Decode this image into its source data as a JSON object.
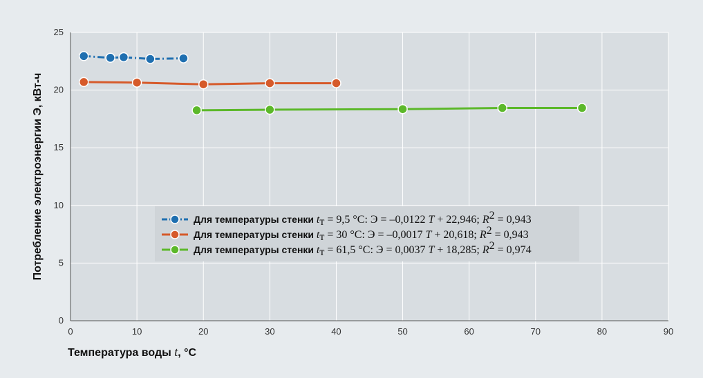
{
  "chart_data": {
    "type": "line",
    "xlabel": "Температура воды t, °C",
    "ylabel": "Потребление электроэнергии Э, кВт-ч",
    "xlim": [
      0,
      90
    ],
    "ylim": [
      0,
      25
    ],
    "xticks": [
      0,
      10,
      20,
      30,
      40,
      50,
      60,
      70,
      80,
      90
    ],
    "yticks": [
      0,
      5,
      10,
      15,
      20,
      25
    ],
    "grid": true,
    "legend_position": "center",
    "series": [
      {
        "label": "Для температуры стенки",
        "equation": "tт = 9,5°С: Э = –0,0122 T + 22,946; R2 = 0,943",
        "color": "#1f6fb0",
        "line_style": "dash-dot",
        "x": [
          2,
          6,
          8,
          12,
          17
        ],
        "y": [
          22.95,
          22.8,
          22.85,
          22.7,
          22.75
        ]
      },
      {
        "label": "Для температуры стенки",
        "equation": "tт = 30°С: Э = –0,0017 T + 20,618; R2 = 0,943",
        "color": "#d65a2a",
        "line_style": "solid",
        "x": [
          2,
          10,
          20,
          30,
          40
        ],
        "y": [
          20.7,
          20.65,
          20.5,
          20.6,
          20.6
        ]
      },
      {
        "label": "Для температуры стенки",
        "equation": "tт = 61,5°С: Э = 0,0037 T + 18,285; R2 = 0,974",
        "color": "#5cb82a",
        "line_style": "solid",
        "x": [
          19,
          30,
          50,
          65,
          77
        ],
        "y": [
          18.25,
          18.3,
          18.35,
          18.45,
          18.45
        ]
      }
    ]
  },
  "legend": [
    {
      "label": "Для температуры стенки",
      "eq_pre": "t",
      "eq_sub": "т",
      "eq_mid": " = 9,5 °С: Э = –0,0122 ",
      "eq_t": "T",
      "eq_post": " + 22,946; ",
      "eq_r": "R",
      "eq_sup": "2",
      "eq_end": " = 0,943"
    },
    {
      "label": "Для температуры стенки",
      "eq_pre": "t",
      "eq_sub": "т",
      "eq_mid": " = 30 °С: Э = –0,0017 ",
      "eq_t": "T",
      "eq_post": " + 20,618; ",
      "eq_r": "R",
      "eq_sup": "2",
      "eq_end": " = 0,943"
    },
    {
      "label": "Для температуры стенки",
      "eq_pre": "t",
      "eq_sub": "т",
      "eq_mid": " = 61,5 °С: Э = 0,0037 ",
      "eq_t": "T",
      "eq_post": " + 18,285; ",
      "eq_r": "R",
      "eq_sup": "2",
      "eq_end": " = 0,974"
    }
  ]
}
